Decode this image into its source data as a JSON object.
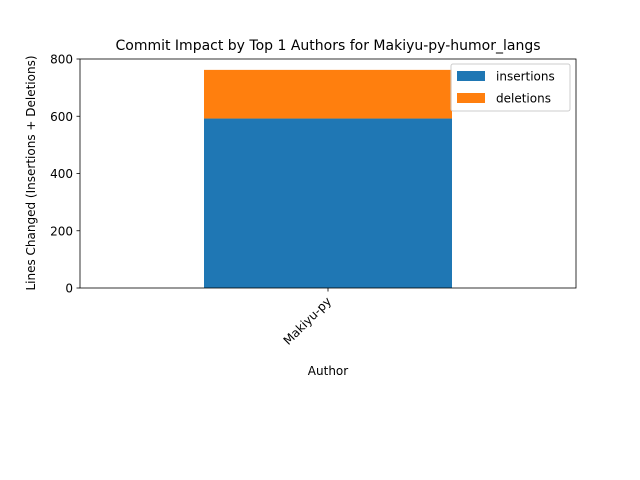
{
  "chart_data": {
    "type": "bar",
    "stacked": true,
    "title": "Commit Impact by Top 1 Authors for Makiyu-py-humor_langs",
    "xlabel": "Author",
    "ylabel": "Lines Changed (Insertions + Deletions)",
    "categories": [
      "Makiyu-py"
    ],
    "series": [
      {
        "name": "insertions",
        "values": [
          592
        ],
        "color": "#1f77b4"
      },
      {
        "name": "deletions",
        "values": [
          170
        ],
        "color": "#ff7f0e"
      }
    ],
    "ylim": [
      0,
      800
    ],
    "yticks": [
      0,
      200,
      400,
      600,
      800
    ],
    "grid": false,
    "legend_position": "top-right"
  }
}
